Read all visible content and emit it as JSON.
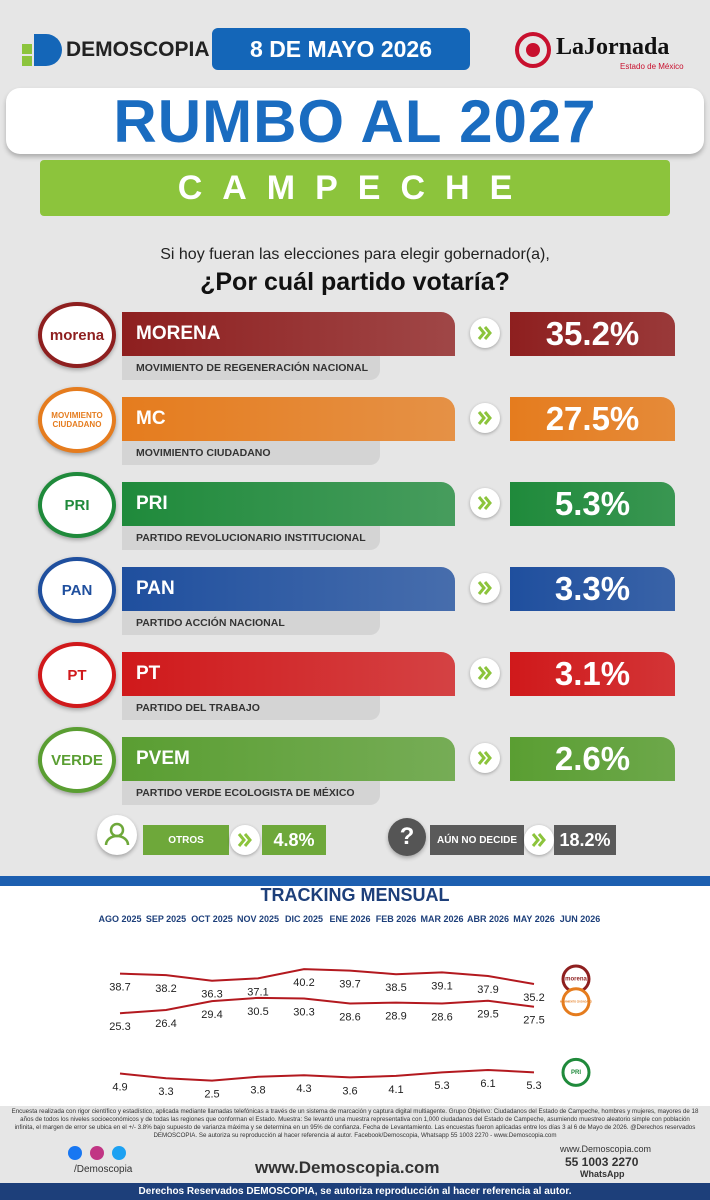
{
  "header": {
    "brand": "DEMOSCOPIA",
    "date": "8 DE MAYO 2026",
    "partner": "LaJornada",
    "partner_sub": "Estado de México"
  },
  "title": "RUMBO AL 2027",
  "state": "CAMPECHE",
  "question": {
    "line1": "Si hoy fueran las elecciones para elegir gobernador(a),",
    "line2": "¿Por cuál partido votaría?"
  },
  "parties": [
    {
      "logo": "morena",
      "name": "MORENA",
      "full_name": "MOVIMIENTO DE REGENERACIÓN NACIONAL",
      "value": "35.2%",
      "color": "#8e1f1f"
    },
    {
      "logo": "MOVIMIENTO CIUDADANO",
      "name": "MC",
      "full_name": "MOVIMIENTO CIUDADANO",
      "value": "27.5%",
      "color": "#e57c1e"
    },
    {
      "logo": "PRI",
      "name": "PRI",
      "full_name": "PARTIDO REVOLUCIONARIO INSTITUCIONAL",
      "value": "5.3%",
      "color": "#1f8a3b"
    },
    {
      "logo": "PAN",
      "name": "PAN",
      "full_name": "PARTIDO ACCIÓN NACIONAL",
      "value": "3.3%",
      "color": "#1f4f9e"
    },
    {
      "logo": "PT",
      "name": "PT",
      "full_name": "PARTIDO DEL TRABAJO",
      "value": "3.1%",
      "color": "#d0191b"
    },
    {
      "logo": "VERDE",
      "name": "PVEM",
      "full_name": "PARTIDO VERDE ECOLOGISTA DE MÉXICO",
      "value": "2.6%",
      "color": "#5a9e32"
    }
  ],
  "others": [
    {
      "name": "OTROS",
      "value": "4.8%",
      "color": "#6ea83a"
    },
    {
      "icon": "?",
      "name": "AÚN NO DECIDE",
      "value": "18.2%",
      "color": "#5a5a5a"
    }
  ],
  "chart_data": {
    "type": "line",
    "title": "TRACKING MENSUAL",
    "categories": [
      "AGO 2025",
      "SEP 2025",
      "OCT 2025",
      "NOV 2025",
      "DIC 2025",
      "ENE 2026",
      "FEB 2026",
      "MAR 2026",
      "ABR 2026",
      "MAY 2026",
      "JUN 2026"
    ],
    "ylim": [
      0,
      45
    ],
    "series": [
      {
        "color": "#b3191f",
        "values": [
          38.7,
          38.2,
          36.3,
          37.1,
          40.2,
          39.7,
          38.5,
          39.1,
          37.9,
          35.2,
          null
        ]
      },
      {
        "color": "#b3191f",
        "values": [
          25.3,
          26.4,
          29.4,
          30.5,
          30.3,
          28.6,
          28.9,
          28.6,
          29.5,
          27.5,
          null
        ]
      },
      {
        "color": "#b3191f",
        "values": [
          4.9,
          3.3,
          2.5,
          3.8,
          4.3,
          3.6,
          4.1,
          5.3,
          6.1,
          5.3,
          null
        ]
      }
    ]
  },
  "footer": {
    "methodology": "Encuesta realizada con rigor científico y estadístico, aplicada mediante llamadas telefónicas a través de un sistema de marcación y captura digital multiagente. Grupo Objetivo: Ciudadanos del Estado de Campeche, hombres y mujeres, mayores de 18 años de todos los niveles socioeconómicos y de todas las regiones que conforman el Estado. Muestra: Se levantó una muestra representativa con 1,000 ciudadanos del Estado de Campeche, asumiendo muestreo aleatorio simple con población infinita, el margen de error se ubica en el +/- 3.8% bajo supuesto de varianza máxima y se determina en un 95% de confianza. Fecha de Levantamiento. Las encuestas fueron aplicadas entre los días 3 al 6 de Mayo de 2026. @Derechos reservados DEMOSCOPIA. Se autoriza su reproducción al hacer referencia al autor. Facebook/Demoscopia, Whatsapp 55 1003 2270 - www.Demoscopia.com",
    "social": "/Demoscopia",
    "website": "www.Demoscopia.com",
    "contact_site": "www.Demoscopia.com",
    "phone": "55 1003 2270",
    "whatsapp": "WhatsApp",
    "rights": "Derechos Reservados DEMOSCOPIA, se autoriza reproducción al hacer referencia al autor."
  }
}
